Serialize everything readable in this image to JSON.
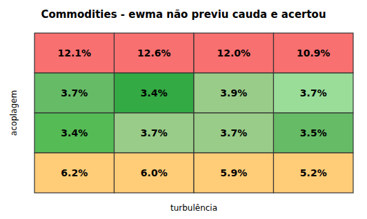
{
  "chart_data": {
    "type": "heatmap",
    "title": "Commodities - ewma não previu cauda e acertou",
    "xlabel": "turbulência",
    "ylabel": "acoplagem",
    "values": [
      [
        12.1,
        12.6,
        12.0,
        10.9
      ],
      [
        3.7,
        3.4,
        3.9,
        3.7
      ],
      [
        3.4,
        3.7,
        3.7,
        3.5
      ],
      [
        6.2,
        6.0,
        5.9,
        5.2
      ]
    ],
    "value_labels": [
      [
        "12.1%",
        "12.6%",
        "12.0%",
        "10.9%"
      ],
      [
        "3.7%",
        "3.4%",
        "3.9%",
        "3.7%"
      ],
      [
        "3.4%",
        "3.7%",
        "3.7%",
        "3.5%"
      ],
      [
        "6.2%",
        "6.0%",
        "5.9%",
        "5.2%"
      ]
    ],
    "colors": [
      [
        "#F87070",
        "#F87070",
        "#F87070",
        "#F87070"
      ],
      [
        "#66BB66",
        "#33AA44",
        "#99CC88",
        "#99DD99"
      ],
      [
        "#55BB55",
        "#99CC88",
        "#99CC88",
        "#66BB66"
      ],
      [
        "#FFCC77",
        "#FFCC77",
        "#FFCC77",
        "#FFCC77"
      ]
    ],
    "data_labels": true,
    "tick_labels": false
  }
}
